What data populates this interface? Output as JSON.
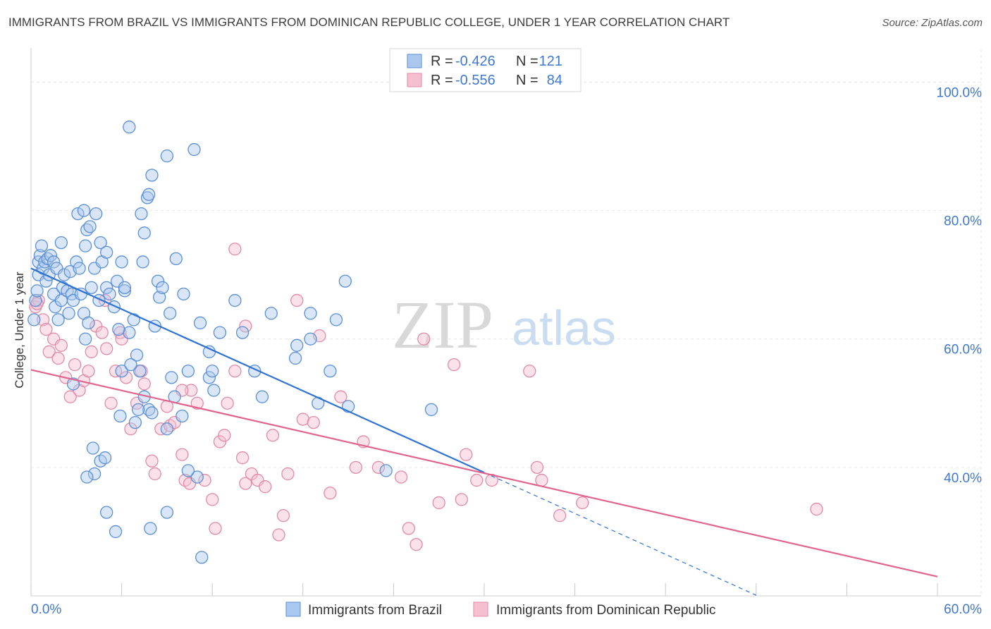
{
  "title": "IMMIGRANTS FROM BRAZIL VS IMMIGRANTS FROM DOMINICAN REPUBLIC COLLEGE, UNDER 1 YEAR CORRELATION CHART",
  "source": "Source: ZipAtlas.com",
  "watermark": {
    "zip": "ZIP",
    "atlas": "atlas"
  },
  "colors": {
    "brazil_fill": "#aac8ee",
    "brazil_stroke": "#5b8fd6",
    "brazil_line": "#2f72d0",
    "dominican_fill": "#f6bfd0",
    "dominican_stroke": "#e28aa6",
    "dominican_line": "#e0648d",
    "axis_label": "#3f78d0",
    "grid": "#e6e6e6"
  },
  "stats_box": [
    {
      "r_label": "R =",
      "r_value": "-0.426",
      "n_label": "N =",
      "n_value": "121",
      "series": "brazil"
    },
    {
      "r_label": "R =",
      "r_value": "-0.556",
      "n_label": "N =",
      "n_value": "84",
      "series": "dominican"
    }
  ],
  "chart_data": {
    "type": "scatter",
    "title": "IMMIGRANTS FROM BRAZIL VS IMMIGRANTS FROM DOMINICAN REPUBLIC COLLEGE, UNDER 1 YEAR CORRELATION CHART",
    "xlabel": "",
    "ylabel": "College, Under 1 year",
    "xlim": [
      0,
      60
    ],
    "ylim": [
      20,
      104
    ],
    "x_tick_labels": [
      "0.0%",
      "60.0%"
    ],
    "y_ticks": [
      40,
      60,
      80,
      100
    ],
    "y_tick_labels": [
      "40.0%",
      "60.0%",
      "80.0%",
      "100.0%"
    ],
    "legend_position": "bottom-center",
    "series": [
      {
        "name": "Immigrants from Brazil",
        "key": "brazil",
        "r": -0.426,
        "n": 121,
        "trend": {
          "x0": 0,
          "y0": 71.0,
          "x1": 30.0,
          "y1": 39.2,
          "dash_x1": 48.0,
          "dash_y1": 20.1
        },
        "points": [
          [
            0.2,
            63
          ],
          [
            0.3,
            66
          ],
          [
            0.4,
            67.5
          ],
          [
            0.5,
            70
          ],
          [
            0.5,
            72
          ],
          [
            0.6,
            73
          ],
          [
            0.7,
            74.5
          ],
          [
            0.8,
            71
          ],
          [
            0.9,
            72
          ],
          [
            1.0,
            69
          ],
          [
            1.1,
            72.5
          ],
          [
            1.2,
            70
          ],
          [
            1.3,
            73
          ],
          [
            1.5,
            67
          ],
          [
            1.5,
            72
          ],
          [
            1.7,
            71
          ],
          [
            1.6,
            65
          ],
          [
            1.8,
            63
          ],
          [
            2.0,
            66
          ],
          [
            2.1,
            68
          ],
          [
            2.0,
            75
          ],
          [
            2.2,
            70
          ],
          [
            2.4,
            67.5
          ],
          [
            2.5,
            64
          ],
          [
            2.6,
            70.5
          ],
          [
            2.7,
            67
          ],
          [
            2.8,
            66
          ],
          [
            3.0,
            72
          ],
          [
            3.2,
            71
          ],
          [
            3.3,
            67
          ],
          [
            3.5,
            64
          ],
          [
            3.6,
            60
          ],
          [
            3.8,
            62.5
          ],
          [
            4.0,
            68
          ],
          [
            4.2,
            71
          ],
          [
            4.5,
            66
          ],
          [
            5.0,
            68
          ],
          [
            5.2,
            67
          ],
          [
            5.5,
            65
          ],
          [
            5.7,
            69
          ],
          [
            6.0,
            72
          ],
          [
            6.2,
            67.5
          ],
          [
            6.5,
            61
          ],
          [
            6.8,
            63
          ],
          [
            7.0,
            57.5
          ],
          [
            7.2,
            55
          ],
          [
            7.5,
            51
          ],
          [
            7.8,
            49
          ],
          [
            8.0,
            48.5
          ],
          [
            6.0,
            55
          ],
          [
            3.1,
            79.5
          ],
          [
            3.5,
            80
          ],
          [
            3.7,
            77
          ],
          [
            3.9,
            77.5
          ],
          [
            4.3,
            79.5
          ],
          [
            3.6,
            74.5
          ],
          [
            4.6,
            75
          ],
          [
            4.7,
            72
          ],
          [
            5.0,
            73.5
          ],
          [
            5.8,
            61.5
          ],
          [
            6.2,
            68
          ],
          [
            6.6,
            56
          ],
          [
            7.1,
            49
          ],
          [
            7.5,
            76.5
          ],
          [
            7.3,
            79.5
          ],
          [
            7.4,
            72
          ],
          [
            7.7,
            82
          ],
          [
            8.0,
            85.5
          ],
          [
            8.2,
            62
          ],
          [
            8.5,
            66.5
          ],
          [
            8.4,
            69
          ],
          [
            8.7,
            68
          ],
          [
            9.0,
            88.5
          ],
          [
            9.2,
            64
          ],
          [
            9.3,
            54
          ],
          [
            9.6,
            72.5
          ],
          [
            10.0,
            48
          ],
          [
            10.1,
            67
          ],
          [
            10.4,
            55
          ],
          [
            10.8,
            89.5
          ],
          [
            11.2,
            62.5
          ],
          [
            11.8,
            54
          ],
          [
            12.0,
            55
          ],
          [
            12.1,
            52
          ],
          [
            11.0,
            38.5
          ],
          [
            6.5,
            93
          ],
          [
            7.8,
            82.5
          ],
          [
            4.2,
            39
          ],
          [
            4.6,
            41
          ],
          [
            4.1,
            43
          ],
          [
            4.9,
            41.5
          ],
          [
            5.0,
            33
          ],
          [
            5.6,
            30
          ],
          [
            5.9,
            48
          ],
          [
            6.9,
            47
          ],
          [
            9.0,
            46
          ],
          [
            9.5,
            51
          ],
          [
            10.4,
            39.5
          ],
          [
            11.8,
            58
          ],
          [
            12.5,
            61
          ],
          [
            13.5,
            66
          ],
          [
            14.0,
            61
          ],
          [
            14.8,
            55
          ],
          [
            15.3,
            51
          ],
          [
            15.9,
            64
          ],
          [
            17.5,
            57
          ],
          [
            17.6,
            59
          ],
          [
            18.5,
            64
          ],
          [
            19.8,
            55
          ],
          [
            20.2,
            63
          ],
          [
            20.8,
            69
          ],
          [
            21.0,
            49.5
          ],
          [
            23.5,
            39.5
          ],
          [
            26.5,
            49
          ],
          [
            19.0,
            50
          ],
          [
            11.3,
            26
          ],
          [
            18.5,
            60
          ],
          [
            7.9,
            30.5
          ],
          [
            9.0,
            33
          ],
          [
            3.7,
            38.5
          ],
          [
            2.8,
            53
          ]
        ]
      },
      {
        "name": "Immigrants from Dominican Republic",
        "key": "dominican",
        "r": -0.556,
        "n": 84,
        "trend": {
          "x0": 0,
          "y0": 55.2,
          "x1": 60.0,
          "y1": 23.0
        },
        "points": [
          [
            0.3,
            65
          ],
          [
            0.5,
            66
          ],
          [
            0.8,
            63
          ],
          [
            1.0,
            61.5
          ],
          [
            1.2,
            58
          ],
          [
            1.5,
            60
          ],
          [
            1.8,
            57
          ],
          [
            2.0,
            59
          ],
          [
            2.3,
            54
          ],
          [
            2.6,
            51
          ],
          [
            2.9,
            56
          ],
          [
            3.2,
            52
          ],
          [
            3.5,
            53.5
          ],
          [
            3.8,
            55
          ],
          [
            4.0,
            58
          ],
          [
            4.3,
            62
          ],
          [
            4.7,
            61
          ],
          [
            5.0,
            58.5
          ],
          [
            5.3,
            50
          ],
          [
            5.6,
            55
          ],
          [
            5.9,
            61
          ],
          [
            6.3,
            54
          ],
          [
            6.6,
            46
          ],
          [
            7.0,
            50
          ],
          [
            7.3,
            55
          ],
          [
            7.5,
            53
          ],
          [
            8.0,
            41
          ],
          [
            8.2,
            39
          ],
          [
            8.6,
            46
          ],
          [
            9.0,
            49.5
          ],
          [
            9.2,
            46.5
          ],
          [
            9.5,
            47
          ],
          [
            10.0,
            42
          ],
          [
            10.2,
            38
          ],
          [
            10.5,
            37.5
          ],
          [
            10.6,
            52
          ],
          [
            11.0,
            50
          ],
          [
            11.5,
            38
          ],
          [
            12.0,
            35
          ],
          [
            12.2,
            30.5
          ],
          [
            12.5,
            44
          ],
          [
            12.8,
            45
          ],
          [
            13.0,
            50
          ],
          [
            13.5,
            55
          ],
          [
            14.0,
            41.5
          ],
          [
            14.2,
            37.5
          ],
          [
            14.6,
            39
          ],
          [
            15.0,
            38
          ],
          [
            15.5,
            37
          ],
          [
            16.0,
            45
          ],
          [
            16.4,
            29.5
          ],
          [
            16.7,
            32.5
          ],
          [
            17.0,
            39
          ],
          [
            17.6,
            66
          ],
          [
            18.0,
            47.5
          ],
          [
            18.7,
            47
          ],
          [
            19.1,
            60.5
          ],
          [
            19.8,
            36
          ],
          [
            20.5,
            51
          ],
          [
            21.5,
            40
          ],
          [
            22.0,
            44
          ],
          [
            23.0,
            40
          ],
          [
            24.5,
            38.5
          ],
          [
            25.0,
            30.5
          ],
          [
            25.5,
            28
          ],
          [
            26.0,
            60
          ],
          [
            27.0,
            34.5
          ],
          [
            28.0,
            56
          ],
          [
            28.5,
            35
          ],
          [
            28.8,
            42
          ],
          [
            29.5,
            38
          ],
          [
            30.5,
            38
          ],
          [
            33.0,
            55
          ],
          [
            33.5,
            40
          ],
          [
            33.8,
            38
          ],
          [
            35.0,
            32.5
          ],
          [
            36.5,
            34.5
          ],
          [
            52.0,
            33.5
          ],
          [
            0.4,
            65.5
          ],
          [
            13.5,
            74
          ],
          [
            14.2,
            62
          ],
          [
            10.0,
            52
          ],
          [
            4.9,
            66
          ],
          [
            6.0,
            60
          ]
        ]
      }
    ]
  },
  "legend": [
    {
      "label": "Immigrants from Brazil",
      "series": "brazil"
    },
    {
      "label": "Immigrants from Dominican Republic",
      "series": "dominican"
    }
  ]
}
